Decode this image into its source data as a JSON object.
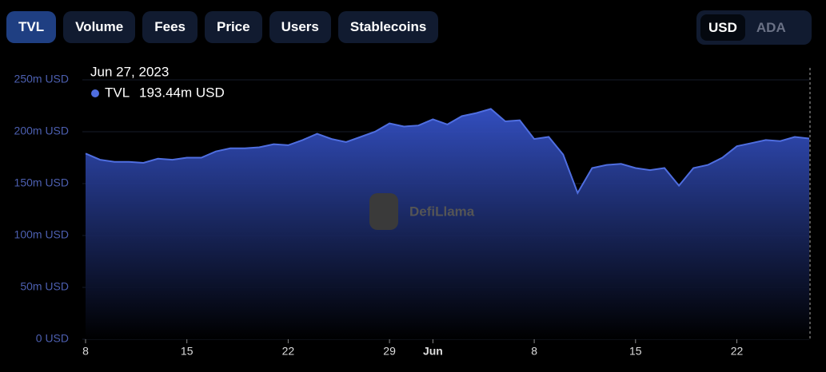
{
  "tabs": [
    "TVL",
    "Volume",
    "Fees",
    "Price",
    "Users",
    "Stablecoins"
  ],
  "currency": [
    "USD",
    "ADA"
  ],
  "watermark": "DefiLlama",
  "tooltip": {
    "date": "Jun 27, 2023",
    "label": "193.44m USD"
  },
  "chart_data": {
    "type": "area",
    "x": [
      "2023-05-08",
      "2023-05-09",
      "2023-05-10",
      "2023-05-11",
      "2023-05-12",
      "2023-05-13",
      "2023-05-14",
      "2023-05-15",
      "2023-05-16",
      "2023-05-17",
      "2023-05-18",
      "2023-05-19",
      "2023-05-20",
      "2023-05-21",
      "2023-05-22",
      "2023-05-23",
      "2023-05-24",
      "2023-05-25",
      "2023-05-26",
      "2023-05-27",
      "2023-05-28",
      "2023-05-29",
      "2023-05-30",
      "2023-05-31",
      "2023-06-01",
      "2023-06-02",
      "2023-06-03",
      "2023-06-04",
      "2023-06-05",
      "2023-06-06",
      "2023-06-07",
      "2023-06-08",
      "2023-06-09",
      "2023-06-10",
      "2023-06-11",
      "2023-06-12",
      "2023-06-13",
      "2023-06-14",
      "2023-06-15",
      "2023-06-16",
      "2023-06-17",
      "2023-06-18",
      "2023-06-19",
      "2023-06-20",
      "2023-06-21",
      "2023-06-22",
      "2023-06-23",
      "2023-06-24",
      "2023-06-25",
      "2023-06-26",
      "2023-06-27"
    ],
    "series": [
      {
        "name": "TVL",
        "color": "#4f6ee0",
        "values": [
          179,
          173,
          171,
          171,
          170,
          174,
          173,
          175,
          175,
          181,
          184,
          184,
          185,
          188,
          187,
          192,
          198,
          193,
          190,
          195,
          200,
          208,
          205,
          206,
          212,
          207,
          215,
          218,
          222,
          210,
          211,
          193,
          195,
          178,
          141,
          165,
          168,
          169,
          165,
          163,
          165,
          148,
          165,
          168,
          175,
          186,
          189,
          192,
          191,
          195,
          193.44
        ]
      }
    ],
    "xlim": [
      "2023-05-08",
      "2023-06-27"
    ],
    "xticks": [
      {
        "value": "2023-05-08",
        "label": "8"
      },
      {
        "value": "2023-05-15",
        "label": "15"
      },
      {
        "value": "2023-05-22",
        "label": "22"
      },
      {
        "value": "2023-05-29",
        "label": "29"
      },
      {
        "value": "2023-06-01",
        "label": "Jun"
      },
      {
        "value": "2023-06-08",
        "label": "8"
      },
      {
        "value": "2023-06-15",
        "label": "15"
      },
      {
        "value": "2023-06-22",
        "label": "22"
      }
    ],
    "ylim": [
      0,
      250
    ],
    "yticks": [
      {
        "value": 0,
        "label": "0 USD"
      },
      {
        "value": 50,
        "label": "50m USD"
      },
      {
        "value": 100,
        "label": "100m USD"
      },
      {
        "value": 150,
        "label": "150m USD"
      },
      {
        "value": 200,
        "label": "200m USD"
      },
      {
        "value": 250,
        "label": "250m USD"
      }
    ],
    "grid": true
  }
}
